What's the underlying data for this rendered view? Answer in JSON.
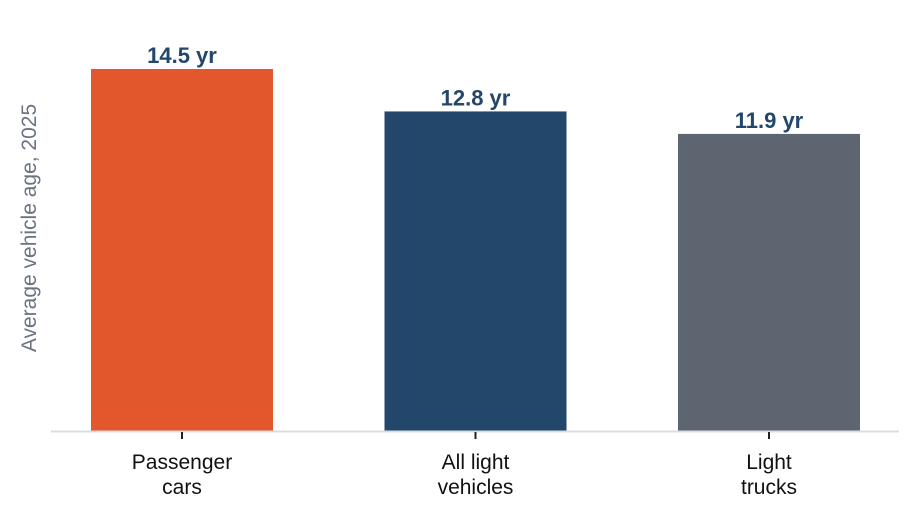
{
  "chart_data": {
    "type": "bar",
    "title": "",
    "xlabel": "",
    "ylabel": "Average vehicle age, 2025",
    "ylim": [
      0,
      14.5
    ],
    "grid": false,
    "legend": "none",
    "categories": [
      [
        "Passenger",
        "cars"
      ],
      [
        "All light",
        "vehicles"
      ],
      [
        "Light",
        "trucks"
      ]
    ],
    "values": [
      14.5,
      12.8,
      11.9
    ],
    "value_labels": [
      "14.5 yr",
      "12.8 yr",
      "11.9 yr"
    ],
    "colors": [
      "#e2572b",
      "#23466b",
      "#5c6570"
    ],
    "value_label_color": "#23466b",
    "axis_color": "#d9dde2",
    "tick_color": "#222222",
    "ylabel_color": "#6b7280",
    "category_label_color": "#111111"
  }
}
